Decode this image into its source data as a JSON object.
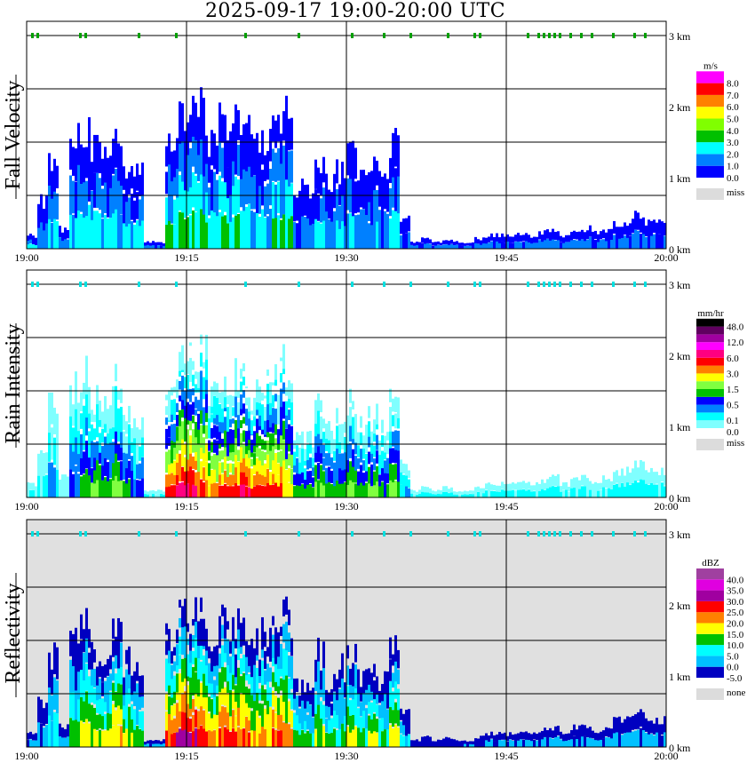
{
  "title": "2025-09-17   19:00-20:00 UTC",
  "chart_data": {
    "type": "heatmap",
    "title": "2025-09-17   19:00-20:00 UTC",
    "x_ticks": [
      "19:00",
      "19:15",
      "19:30",
      "19:45",
      "20:00"
    ],
    "y_ticks": [
      "3 km",
      "2 km",
      "1 km",
      "0 km"
    ],
    "ylim_km": [
      0,
      3.2
    ],
    "xlim_minutes": [
      0,
      60
    ],
    "echo_top_km": [
      0.2,
      0.7,
      1.4,
      0.3,
      1.7,
      1.9,
      1.5,
      1.4,
      1.9,
      1.3,
      1.2,
      0.1,
      0.1,
      1.6,
      2.0,
      2.0,
      2.1,
      1.7,
      1.9,
      1.9,
      1.8,
      1.6,
      1.7,
      1.9,
      2.0,
      0.9,
      0.9,
      1.4,
      1.0,
      1.2,
      1.4,
      1.1,
      1.2,
      1.0,
      1.6,
      0.5,
      0.1,
      0.15,
      0.1,
      0.15,
      0.1,
      0.1,
      0.15,
      0.2,
      0.2,
      0.2,
      0.25,
      0.2,
      0.25,
      0.3,
      0.2,
      0.3,
      0.3,
      0.25,
      0.3,
      0.4,
      0.4,
      0.5,
      0.4,
      0.4
    ],
    "marker_minutes": [
      0.5,
      1,
      5,
      5.5,
      10.5,
      14,
      20.5,
      25.5,
      30.5,
      33.5,
      36,
      39.5,
      42,
      42.5,
      47,
      48,
      48.5,
      49,
      49.5,
      50,
      51,
      52,
      53,
      55,
      57,
      58
    ],
    "panels": [
      {
        "name": "Fall Velocity",
        "unit": "m/s",
        "background": "#ffffff",
        "colors": [
          "#0000ff",
          "#0080ff",
          "#00ffff",
          "#00c000",
          "#80ff00",
          "#ffff00",
          "#ff8000",
          "#ff0000",
          "#ff00ff"
        ],
        "labels": [
          "0.0",
          "1.0",
          "2.0",
          "3.0",
          "4.0",
          "5.0",
          "6.0",
          "7.0",
          "8.0"
        ],
        "missing_label": "miss",
        "max_index": [
          2,
          1,
          2,
          1,
          2,
          2,
          2,
          2,
          2,
          2,
          2,
          1,
          1,
          3,
          3,
          3,
          3,
          2,
          3,
          3,
          2,
          2,
          2,
          3,
          3,
          1,
          1,
          2,
          1,
          2,
          2,
          1,
          2,
          1,
          2,
          1,
          1,
          1,
          1,
          1,
          1,
          1,
          1,
          1,
          1,
          1,
          1,
          1,
          1,
          1,
          1,
          1,
          1,
          1,
          1,
          1,
          1,
          1,
          1,
          1
        ]
      },
      {
        "name": "Rain Intensity",
        "unit": "mm/hr",
        "background": "#ffffff",
        "colors": [
          "#80ffff",
          "#00ffff",
          "#0080ff",
          "#0000ff",
          "#00c000",
          "#80ff40",
          "#ffff00",
          "#ff8000",
          "#ff0000",
          "#ff0080",
          "#ff00ff",
          "#a000a0",
          "#600060",
          "#000000"
        ],
        "labels": [
          "0.0",
          "0.1",
          "0.5",
          "1.5",
          "3.0",
          "6.0",
          "12.0",
          "48.0"
        ],
        "missing_label": "miss",
        "max_index": [
          1,
          1,
          2,
          0,
          3,
          4,
          5,
          4,
          5,
          4,
          3,
          1,
          1,
          8,
          9,
          9,
          8,
          7,
          8,
          8,
          9,
          8,
          8,
          8,
          7,
          4,
          4,
          5,
          4,
          4,
          5,
          4,
          5,
          4,
          5,
          2,
          1,
          1,
          1,
          1,
          1,
          1,
          1,
          1,
          1,
          1,
          1,
          1,
          1,
          1,
          1,
          1,
          1,
          1,
          1,
          1,
          1,
          1,
          1,
          1
        ]
      },
      {
        "name": "Reflectivity",
        "unit": "dBZ",
        "background": "#e0e0e0",
        "colors": [
          "#0000c0",
          "#00c0ff",
          "#00ffff",
          "#00c000",
          "#ffff00",
          "#ff8000",
          "#ff0000",
          "#a000a0",
          "#e000e0",
          "#a040a0"
        ],
        "labels": [
          "-5.0",
          "0.0",
          "5.0",
          "10.0",
          "15.0",
          "20.0",
          "25.0",
          "30.0",
          "35.0",
          "40.0"
        ],
        "missing_label": "none",
        "max_index": [
          1,
          1,
          2,
          1,
          3,
          4,
          4,
          4,
          5,
          4,
          3,
          1,
          1,
          6,
          7,
          7,
          6,
          5,
          6,
          6,
          6,
          5,
          5,
          6,
          5,
          3,
          3,
          4,
          3,
          3,
          4,
          3,
          4,
          3,
          4,
          2,
          0,
          0,
          0,
          0,
          0,
          1,
          0,
          1,
          1,
          1,
          1,
          1,
          1,
          1,
          1,
          1,
          1,
          1,
          1,
          1,
          1,
          1,
          1,
          1
        ]
      }
    ]
  }
}
